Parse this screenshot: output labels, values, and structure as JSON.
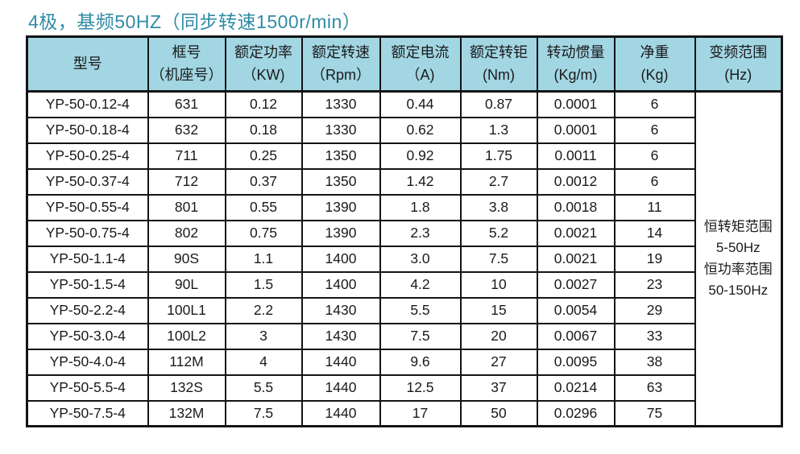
{
  "title": "4极，基频50HZ（同步转速1500r/min）",
  "colors": {
    "title_color": "#2f8ba6",
    "header_bg": "#a2d6e3",
    "border": "#141414",
    "cell_bg": "#ffffff",
    "text": "#1a1a1a"
  },
  "table": {
    "headers": [
      {
        "line1": "型号",
        "line2": ""
      },
      {
        "line1": "框号",
        "line2": "（机座号）"
      },
      {
        "line1": "额定功率",
        "line2": "（KW)"
      },
      {
        "line1": "额定转速",
        "line2": "（Rpm）"
      },
      {
        "line1": "额定电流",
        "line2": "（A)"
      },
      {
        "line1": "额定转钜",
        "line2": "(Nm)"
      },
      {
        "line1": "转动惯量",
        "line2": "(Kg/m)"
      },
      {
        "line1": "净重",
        "line2": "(Kg)"
      },
      {
        "line1": "变频范围",
        "line2": "(Hz)"
      }
    ],
    "rows": [
      [
        "YP-50-0.12-4",
        "631",
        "0.12",
        "1330",
        "0.44",
        "0.87",
        "0.0001",
        "6"
      ],
      [
        "YP-50-0.18-4",
        "632",
        "0.18",
        "1330",
        "0.62",
        "1.3",
        "0.0001",
        "6"
      ],
      [
        "YP-50-0.25-4",
        "711",
        "0.25",
        "1350",
        "0.92",
        "1.75",
        "0.0011",
        "6"
      ],
      [
        "YP-50-0.37-4",
        "712",
        "0.37",
        "1350",
        "1.42",
        "2.7",
        "0.0012",
        "6"
      ],
      [
        "YP-50-0.55-4",
        "801",
        "0.55",
        "1390",
        "1.8",
        "3.8",
        "0.0018",
        "11"
      ],
      [
        "YP-50-0.75-4",
        "802",
        "0.75",
        "1390",
        "2.3",
        "5.2",
        "0.0021",
        "14"
      ],
      [
        "YP-50-1.1-4",
        "90S",
        "1.1",
        "1400",
        "3.0",
        "7.5",
        "0.0021",
        "19"
      ],
      [
        "YP-50-1.5-4",
        "90L",
        "1.5",
        "1400",
        "4.2",
        "10",
        "0.0027",
        "23"
      ],
      [
        "YP-50-2.2-4",
        "100L1",
        "2.2",
        "1430",
        "5.5",
        "15",
        "0.0054",
        "29"
      ],
      [
        "YP-50-3.0-4",
        "100L2",
        "3",
        "1430",
        "7.5",
        "20",
        "0.0067",
        "33"
      ],
      [
        "YP-50-4.0-4",
        "112M",
        "4",
        "1440",
        "9.6",
        "27",
        "0.0095",
        "38"
      ],
      [
        "YP-50-5.5-4",
        "132S",
        "5.5",
        "1440",
        "12.5",
        "37",
        "0.0214",
        "63"
      ],
      [
        "YP-50-7.5-4",
        "132M",
        "7.5",
        "1440",
        "17",
        "50",
        "0.0296",
        "75"
      ]
    ],
    "merged_cell_lines": [
      "恒转矩范围",
      "5-50Hz",
      "恒功率范围",
      "50-150Hz"
    ]
  }
}
